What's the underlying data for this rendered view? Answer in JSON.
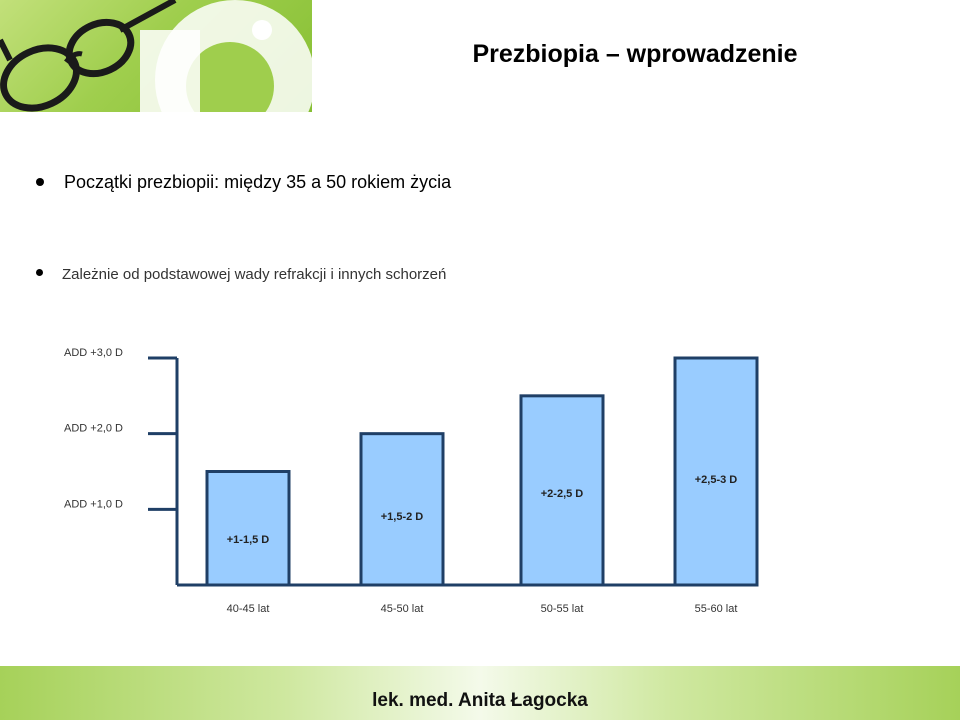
{
  "slide": {
    "title": "Prezbiopia – wprowadzenie",
    "bullets": [
      "Początki prezbiopii: między 35 a 50 rokiem życia",
      "Zależnie od podstawowej wady refrakcji i innych schorzeń"
    ],
    "footer": "lek. med. Anita Łagocka"
  },
  "hero_image": {
    "icon": "glasses-icon",
    "colors": {
      "green": "#9fce4d",
      "white": "#ffffff"
    }
  },
  "chart_data": {
    "type": "bar",
    "categories": [
      "40-45 lat",
      "45-50 lat",
      "50-55 lat",
      "55-60 lat"
    ],
    "values": [
      1.5,
      2.0,
      2.5,
      3.0
    ],
    "data_labels": [
      "+1-1,5 D",
      "+1,5-2 D",
      "+2-2,5 D",
      "+2,5-3 D"
    ],
    "y_ticks": [
      {
        "value": 1.0,
        "label": "ADD +1,0 D"
      },
      {
        "value": 2.0,
        "label": "ADD +2,0 D"
      },
      {
        "value": 3.0,
        "label": "ADD +3,0 D"
      }
    ],
    "ylim": [
      0,
      3.0
    ],
    "title": "",
    "xlabel": "",
    "ylabel": "",
    "colors": {
      "bar_fill": "#99ccff",
      "bar_stroke": "#1f3f66",
      "axis": "#1f3f66"
    }
  }
}
